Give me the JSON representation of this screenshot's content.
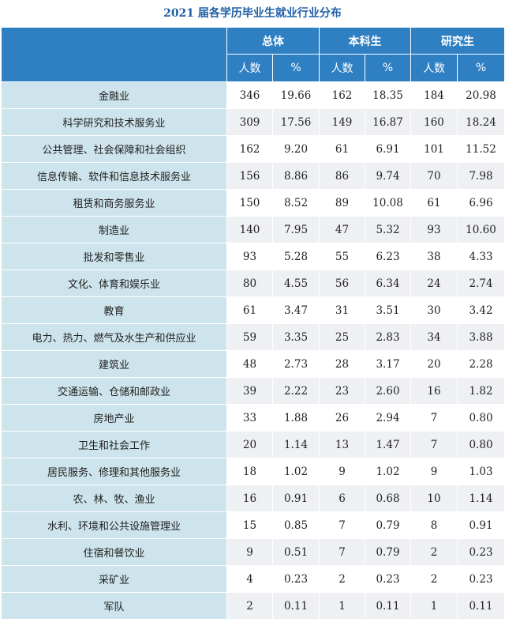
{
  "title": "2021 届各学历毕业生就业行业分布",
  "header": {
    "groups": [
      "总体",
      "本科生",
      "研究生"
    ],
    "sub": [
      "人数",
      "%",
      "人数",
      "%",
      "人数",
      "%"
    ]
  },
  "rows": [
    {
      "industry": "金融业",
      "vals": [
        "346",
        "19.66",
        "162",
        "18.35",
        "184",
        "20.98"
      ]
    },
    {
      "industry": "科学研究和技术服务业",
      "vals": [
        "309",
        "17.56",
        "149",
        "16.87",
        "160",
        "18.24"
      ]
    },
    {
      "industry": "公共管理、社会保障和社会组织",
      "vals": [
        "162",
        "9.20",
        "61",
        "6.91",
        "101",
        "11.52"
      ]
    },
    {
      "industry": "信息传输、软件和信息技术服务业",
      "vals": [
        "156",
        "8.86",
        "86",
        "9.74",
        "70",
        "7.98"
      ]
    },
    {
      "industry": "租赁和商务服务业",
      "vals": [
        "150",
        "8.52",
        "89",
        "10.08",
        "61",
        "6.96"
      ]
    },
    {
      "industry": "制造业",
      "vals": [
        "140",
        "7.95",
        "47",
        "5.32",
        "93",
        "10.60"
      ]
    },
    {
      "industry": "批发和零售业",
      "vals": [
        "93",
        "5.28",
        "55",
        "6.23",
        "38",
        "4.33"
      ]
    },
    {
      "industry": "文化、体育和娱乐业",
      "vals": [
        "80",
        "4.55",
        "56",
        "6.34",
        "24",
        "2.74"
      ]
    },
    {
      "industry": "教育",
      "vals": [
        "61",
        "3.47",
        "31",
        "3.51",
        "30",
        "3.42"
      ]
    },
    {
      "industry": "电力、热力、燃气及水生产和供应业",
      "vals": [
        "59",
        "3.35",
        "25",
        "2.83",
        "34",
        "3.88"
      ]
    },
    {
      "industry": "建筑业",
      "vals": [
        "48",
        "2.73",
        "28",
        "3.17",
        "20",
        "2.28"
      ]
    },
    {
      "industry": "交通运输、仓储和邮政业",
      "vals": [
        "39",
        "2.22",
        "23",
        "2.60",
        "16",
        "1.82"
      ]
    },
    {
      "industry": "房地产业",
      "vals": [
        "33",
        "1.88",
        "26",
        "2.94",
        "7",
        "0.80"
      ]
    },
    {
      "industry": "卫生和社会工作",
      "vals": [
        "20",
        "1.14",
        "13",
        "1.47",
        "7",
        "0.80"
      ]
    },
    {
      "industry": "居民服务、修理和其他服务业",
      "vals": [
        "18",
        "1.02",
        "9",
        "1.02",
        "9",
        "1.03"
      ]
    },
    {
      "industry": "农、林、牧、渔业",
      "vals": [
        "16",
        "0.91",
        "6",
        "0.68",
        "10",
        "1.14"
      ]
    },
    {
      "industry": "水利、环境和公共设施管理业",
      "vals": [
        "15",
        "0.85",
        "7",
        "0.79",
        "8",
        "0.91"
      ]
    },
    {
      "industry": "住宿和餐饮业",
      "vals": [
        "9",
        "0.51",
        "7",
        "0.79",
        "2",
        "0.23"
      ]
    },
    {
      "industry": "采矿业",
      "vals": [
        "4",
        "0.23",
        "2",
        "0.23",
        "2",
        "0.23"
      ]
    },
    {
      "industry": "军队",
      "vals": [
        "2",
        "0.11",
        "1",
        "0.11",
        "1",
        "0.11"
      ]
    }
  ]
}
